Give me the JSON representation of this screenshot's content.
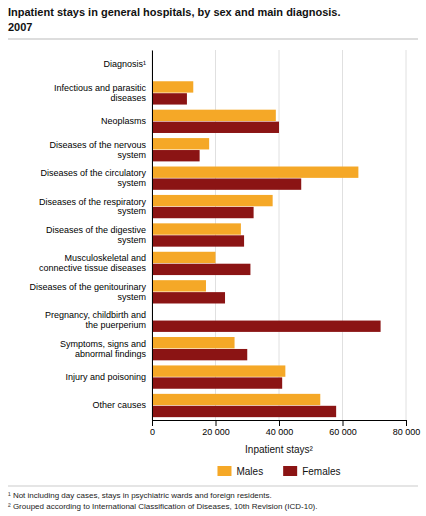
{
  "chart_data": {
    "type": "bar",
    "orientation": "horizontal",
    "title": "Inpatient stays in general hospitals, by sex and main diagnosis.",
    "subtitle": "2007",
    "categories": [
      "Diagnosis¹",
      "Infectious and parasitic\ndiseases",
      "Neoplasms",
      "Diseases of the nervous\nsystem",
      "Diseases of the circulatory\nsystem",
      "Diseases of the respiratory\nsystem",
      "Diseases of the digestive\nsystem",
      "Musculoskeletal and\nconnective tissue diseases",
      "Diseases of the genitourinary\nsystem",
      "Pregnancy, childbirth and\nthe puerperium",
      "Symptoms, signs and\nabnormal findings",
      "Injury and poisoning",
      "Other causes"
    ],
    "series": [
      {
        "name": "Males",
        "color": "#F5A827",
        "values": [
          0,
          13000,
          39000,
          18000,
          65000,
          38000,
          28000,
          20000,
          17000,
          0,
          26000,
          42000,
          53000
        ]
      },
      {
        "name": "Females",
        "color": "#8B1414",
        "values": [
          0,
          11000,
          40000,
          15000,
          47000,
          32000,
          29000,
          31000,
          23000,
          72000,
          30000,
          41000,
          58000
        ]
      }
    ],
    "xlabel": "Inpatient stays²",
    "xlim": [
      0,
      80000
    ],
    "xticks": [
      0,
      {
        "value": 20000,
        "label": "20 000"
      },
      {
        "value": 40000,
        "label": "40 000"
      },
      {
        "value": 60000,
        "label": "60 000"
      },
      {
        "value": 80000,
        "label": "80 000"
      }
    ],
    "grid": true,
    "legend": "bottom",
    "annotations": [
      "¹ Not including day cases, stays in psychiatric wards and foreign residents.",
      "² Grouped according to International Classification of Diseases, 10th Revision (ICD-10)."
    ]
  }
}
